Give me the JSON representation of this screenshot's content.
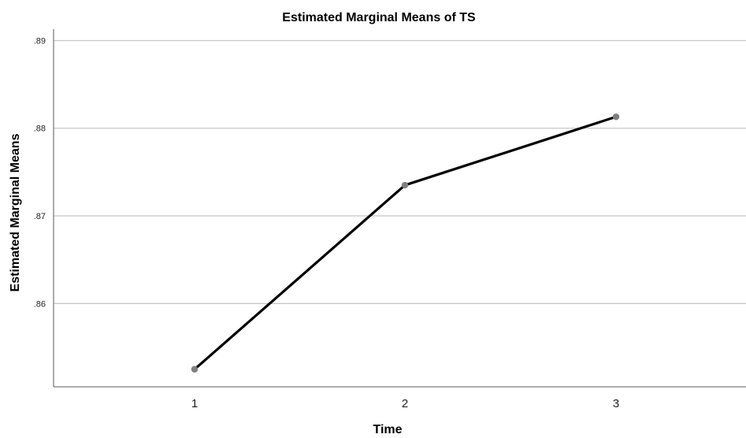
{
  "chart_data": {
    "type": "line",
    "title": "Estimated Marginal Means of TS",
    "xlabel": "Time",
    "ylabel": "Estimated Marginal Means",
    "categories": [
      "1",
      "2",
      "3"
    ],
    "series": [
      {
        "values": [
          0.8525,
          0.8735,
          0.8813
        ]
      }
    ],
    "yticks": [
      0.86,
      0.87,
      0.88,
      0.89
    ],
    "ytick_labels": [
      ".86",
      ".87",
      ".88",
      ".89"
    ],
    "ylim": [
      0.8505,
      0.8913
    ],
    "grid": "horizontal",
    "legend": "none",
    "colors": {
      "line": "#000000",
      "marker": "#7f7f7f",
      "grid": "#c8c8c8",
      "axis": "#5a5a5a"
    }
  }
}
